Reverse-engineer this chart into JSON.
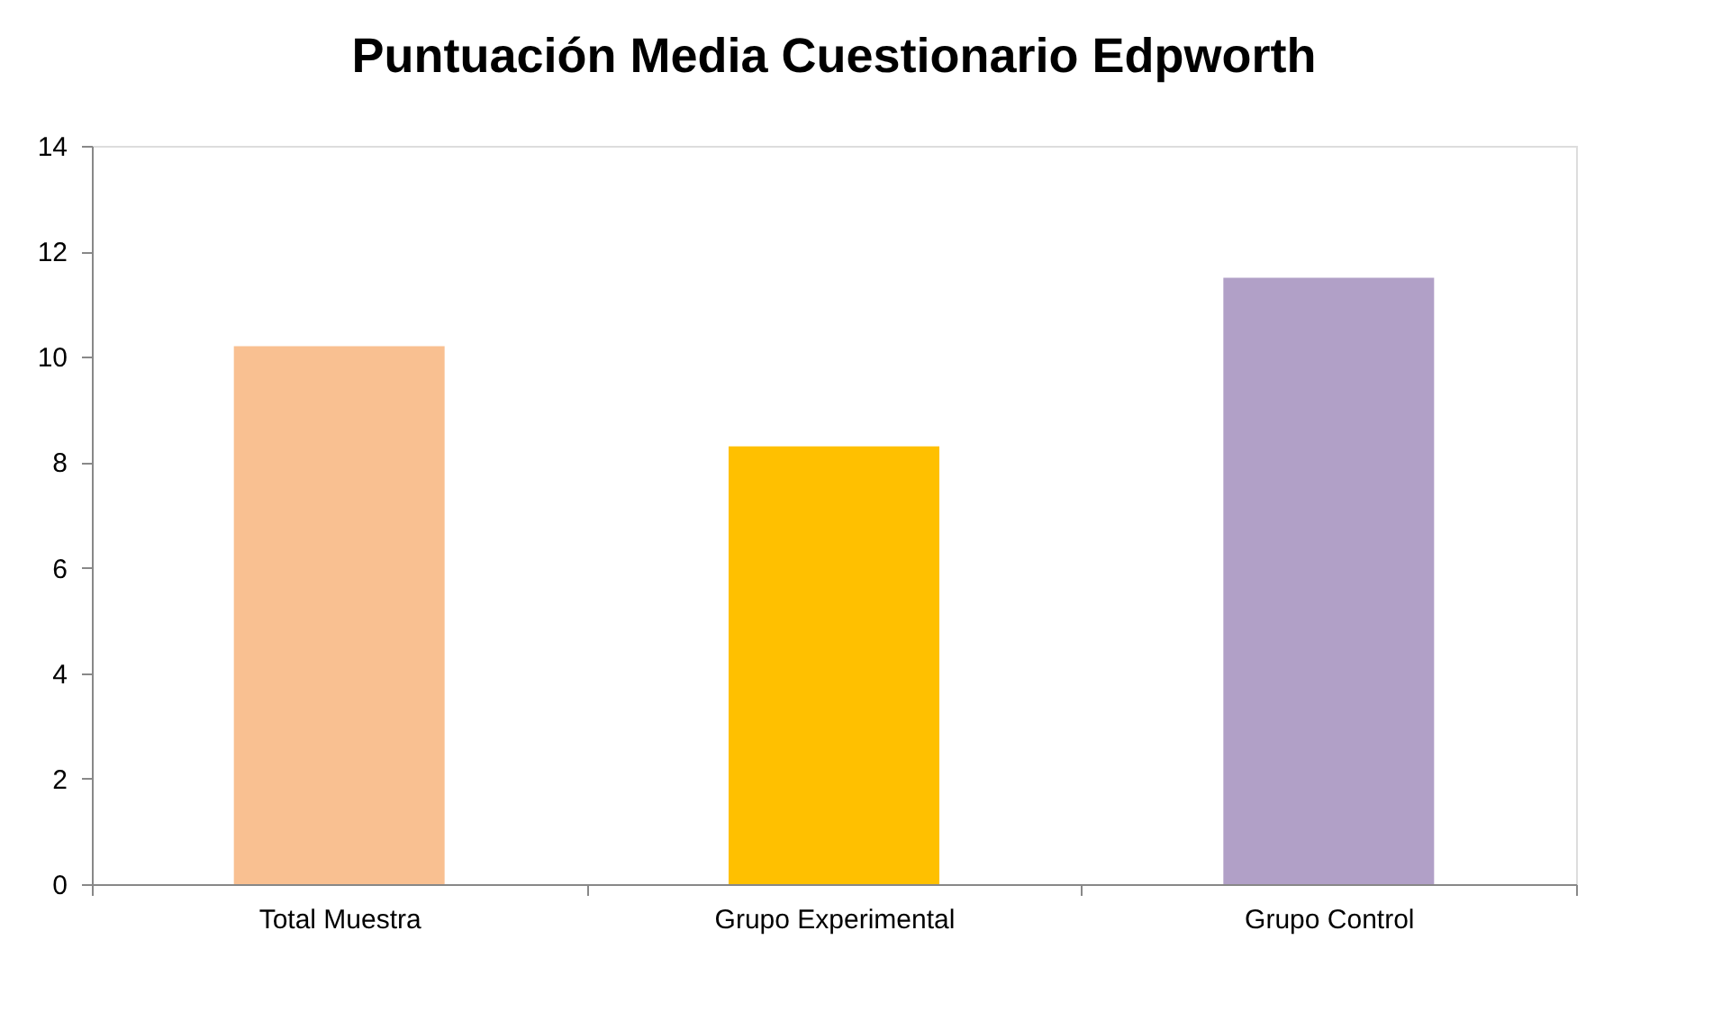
{
  "chart_data": {
    "type": "bar",
    "title": "Puntuación Media Cuestionario Edpworth",
    "categories": [
      "Total Muestra",
      "Grupo Experimental",
      "Grupo Control"
    ],
    "values": [
      10.2,
      8.3,
      11.5
    ],
    "colors": [
      "#f9c091",
      "#ffc000",
      "#b1a0c7"
    ],
    "ylim": [
      0,
      14
    ],
    "yticks": [
      0,
      2,
      4,
      6,
      8,
      10,
      12,
      14
    ],
    "grid": false,
    "legend": false
  }
}
